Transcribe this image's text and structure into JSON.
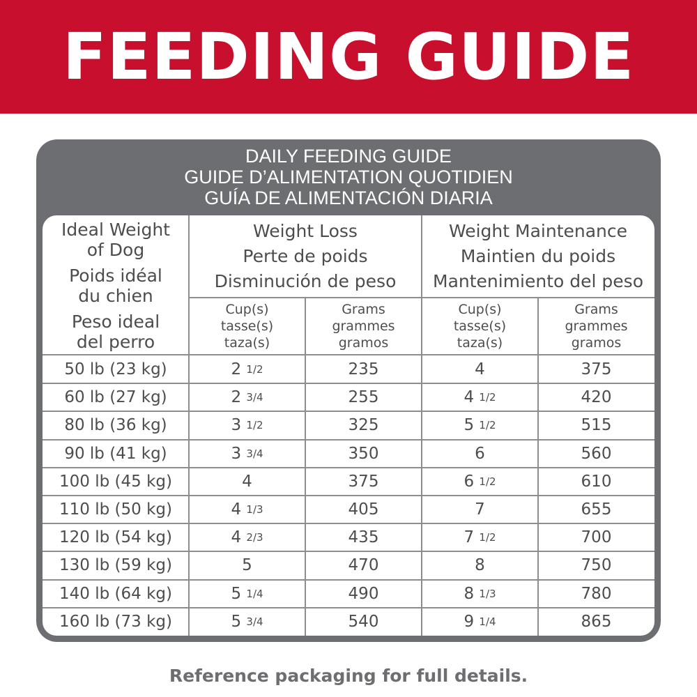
{
  "banner": {
    "title": "FEEDING GUIDE"
  },
  "panel": {
    "heading_lines": [
      "DAILY FEEDING GUIDE",
      "GUIDE D’ALIMENTATION QUOTIDIEN",
      "GUÍA DE ALIMENTACIÓN DIARIA"
    ]
  },
  "table": {
    "weight_header": [
      "Ideal Weight",
      "of Dog",
      "Poids idéal",
      "du chien",
      "Peso ideal",
      "del perro"
    ],
    "groups": [
      {
        "lines": [
          "Weight Loss",
          "Perte de poids",
          "Disminución de peso"
        ]
      },
      {
        "lines": [
          "Weight Maintenance",
          "Maintien du poids",
          "Mantenimiento del peso"
        ]
      }
    ],
    "sub_headers": [
      {
        "lines": [
          "Cup(s)",
          "tasse(s)",
          "taza(s)"
        ]
      },
      {
        "lines": [
          "Grams",
          "grammes",
          "gramos"
        ]
      },
      {
        "lines": [
          "Cup(s)",
          "tasse(s)",
          "taza(s)"
        ]
      },
      {
        "lines": [
          "Grams",
          "grammes",
          "gramos"
        ]
      }
    ],
    "rows": [
      {
        "weight": "50 lb (23 kg)",
        "loss_cups": [
          "2",
          "1/2"
        ],
        "loss_grams": "235",
        "maint_cups": [
          "4",
          ""
        ],
        "maint_grams": "375"
      },
      {
        "weight": "60 lb (27 kg)",
        "loss_cups": [
          "2",
          "3/4"
        ],
        "loss_grams": "255",
        "maint_cups": [
          "4",
          "1/2"
        ],
        "maint_grams": "420"
      },
      {
        "weight": "80 lb (36 kg)",
        "loss_cups": [
          "3",
          "1/2"
        ],
        "loss_grams": "325",
        "maint_cups": [
          "5",
          "1/2"
        ],
        "maint_grams": "515"
      },
      {
        "weight": "90 lb (41 kg)",
        "loss_cups": [
          "3",
          "3/4"
        ],
        "loss_grams": "350",
        "maint_cups": [
          "6",
          ""
        ],
        "maint_grams": "560"
      },
      {
        "weight": "100 lb (45 kg)",
        "loss_cups": [
          "4",
          ""
        ],
        "loss_grams": "375",
        "maint_cups": [
          "6",
          "1/2"
        ],
        "maint_grams": "610"
      },
      {
        "weight": "110 lb (50 kg)",
        "loss_cups": [
          "4",
          "1/3"
        ],
        "loss_grams": "405",
        "maint_cups": [
          "7",
          ""
        ],
        "maint_grams": "655"
      },
      {
        "weight": "120 lb (54 kg)",
        "loss_cups": [
          "4",
          "2/3"
        ],
        "loss_grams": "435",
        "maint_cups": [
          "7",
          "1/2"
        ],
        "maint_grams": "700"
      },
      {
        "weight": "130 lb (59 kg)",
        "loss_cups": [
          "5",
          ""
        ],
        "loss_grams": "470",
        "maint_cups": [
          "8",
          ""
        ],
        "maint_grams": "750"
      },
      {
        "weight": "140 lb (64 kg)",
        "loss_cups": [
          "5",
          "1/4"
        ],
        "loss_grams": "490",
        "maint_cups": [
          "8",
          "1/3"
        ],
        "maint_grams": "780"
      },
      {
        "weight": "160 lb (73 kg)",
        "loss_cups": [
          "5",
          "3/4"
        ],
        "loss_grams": "540",
        "maint_cups": [
          "9",
          "1/4"
        ],
        "maint_grams": "865"
      }
    ]
  },
  "footnote": "Reference packaging for full details.",
  "colors": {
    "banner": "#c8102e",
    "panel": "#6d6e71",
    "text": "#4d4d4f",
    "grid": "#8c8d90"
  }
}
